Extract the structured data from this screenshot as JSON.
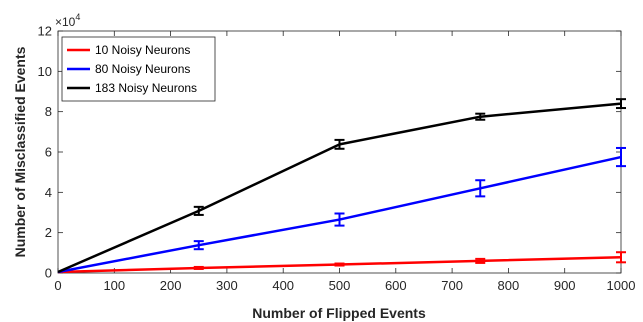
{
  "chart_data": {
    "type": "line",
    "xlabel": "Number of Flipped Events",
    "ylabel": "Number of Misclassified Events",
    "y_exponent_base": "×10",
    "y_exponent_power": "4",
    "xlim": [
      0,
      1000
    ],
    "ylim": [
      0,
      12
    ],
    "x_ticks": [
      "0",
      "100",
      "200",
      "300",
      "400",
      "500",
      "600",
      "700",
      "800",
      "900",
      "1000"
    ],
    "y_ticks": [
      "0",
      "2",
      "4",
      "6",
      "8",
      "10",
      "12"
    ],
    "grid": false,
    "legend_position": "top-left",
    "x": [
      0,
      250,
      500,
      750,
      1000
    ],
    "series": [
      {
        "name": "10 Noisy Neurons",
        "color": "#ff0000",
        "values": [
          0.05,
          0.25,
          0.42,
          0.6,
          0.78
        ],
        "errors": [
          0.02,
          0.05,
          0.05,
          0.1,
          0.25
        ]
      },
      {
        "name": "80 Noisy Neurons",
        "color": "#0000ff",
        "values": [
          0.05,
          1.38,
          2.65,
          4.2,
          5.75
        ],
        "errors": [
          0.02,
          0.2,
          0.3,
          0.4,
          0.45
        ]
      },
      {
        "name": "183 Noisy Neurons",
        "color": "#000000",
        "values": [
          0.05,
          3.08,
          6.38,
          7.75,
          8.4
        ],
        "errors": [
          0.02,
          0.2,
          0.22,
          0.15,
          0.22
        ]
      }
    ]
  }
}
